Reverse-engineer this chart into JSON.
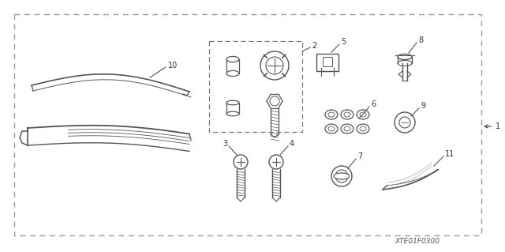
{
  "bg_color": "#ffffff",
  "border_color": "#999999",
  "line_color": "#555555",
  "text_color": "#333333",
  "diagram_code": "XTE01F0300",
  "fig_width": 6.4,
  "fig_height": 3.19,
  "dpi": 100
}
